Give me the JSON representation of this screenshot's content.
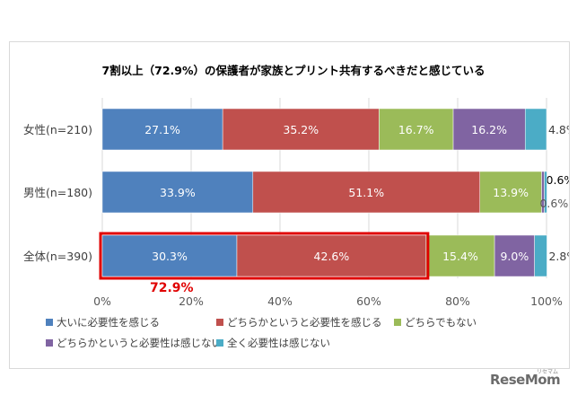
{
  "chart_data": {
    "type": "bar",
    "stacked": "percent",
    "orientation": "horizontal",
    "title": "7割以上（72.9%）の保護者が家族とプリント共有するべきだと感じている",
    "categories": [
      "女性(n=210)",
      "男性(n=180)",
      "全体(n=390)"
    ],
    "series": [
      {
        "name": "大いに必要性を感じる",
        "color": "#4f81bd",
        "values": [
          27.1,
          33.9,
          30.3
        ]
      },
      {
        "name": "どちらかというと必要性を感じる",
        "color": "#c0504d",
        "values": [
          35.2,
          51.1,
          42.6
        ]
      },
      {
        "name": "どちらでもない",
        "color": "#9bbb59",
        "values": [
          16.7,
          13.9,
          15.4
        ]
      },
      {
        "name": "どちらかというと必要性は感じない",
        "color": "#8064a2",
        "values": [
          16.2,
          0.6,
          9.0
        ]
      },
      {
        "name": "全く必要性は感じない",
        "color": "#4bacc6",
        "values": [
          4.8,
          0.6,
          2.8
        ]
      }
    ],
    "value_labels": [
      [
        "27.1%",
        "35.2%",
        "16.7%",
        "16.2%",
        "4.8%"
      ],
      [
        "33.9%",
        "51.1%",
        "13.9%",
        "0.6%",
        "0.6%"
      ],
      [
        "30.3%",
        "42.6%",
        "15.4%",
        "9.0%",
        "2.8%"
      ]
    ],
    "xlim": [
      0,
      100
    ],
    "xticks": [
      "0%",
      "20%",
      "40%",
      "60%",
      "80%",
      "100%"
    ],
    "legend_position": "bottom",
    "highlight": {
      "category": "全体(n=390)",
      "series_count": 2,
      "label": "72.9%",
      "color": "#e00000"
    }
  },
  "watermark": {
    "brand": "ReseMom",
    "sub": "リセマム"
  }
}
